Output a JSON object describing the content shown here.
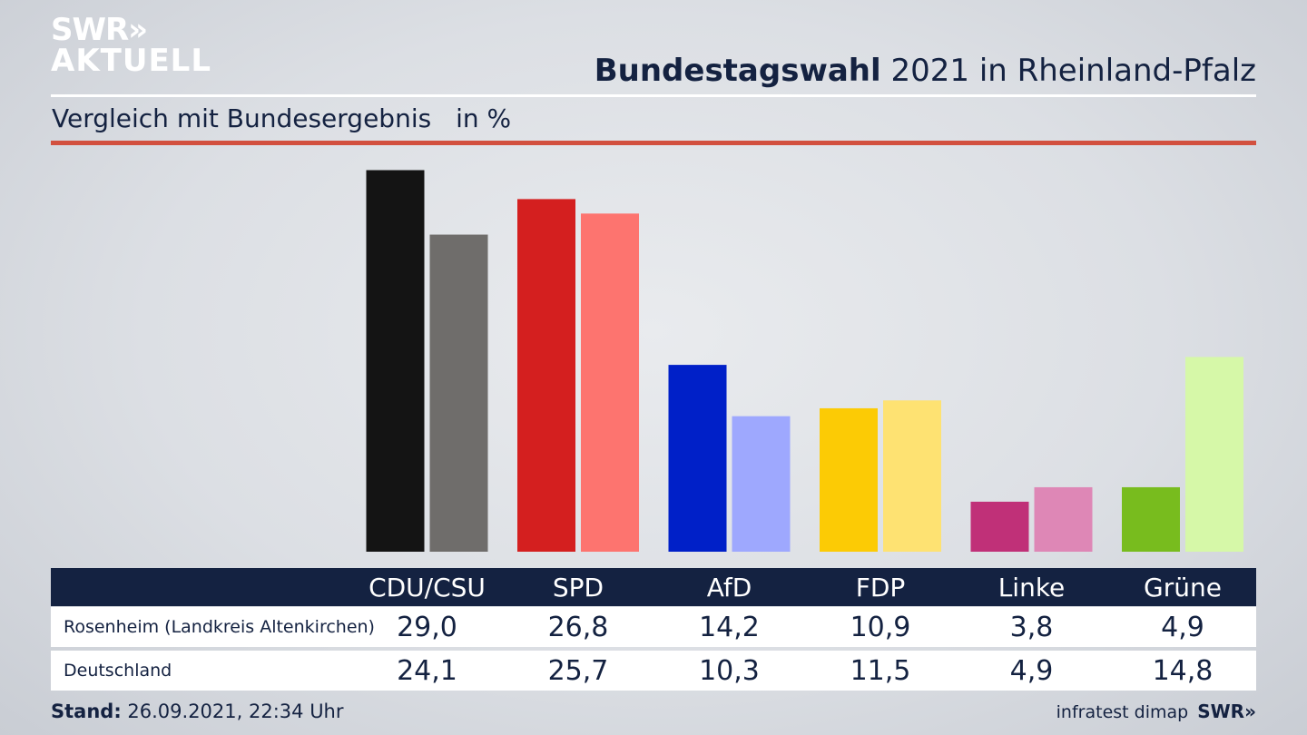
{
  "header": {
    "logo_line1": "SWR»",
    "logo_line2": "AKTUELL",
    "title_bold": "Bundestagswahl",
    "title_rest": "2021 in Rheinland-Pfalz",
    "subtitle": "Vergleich mit Bundesergebnis",
    "unit": "in %"
  },
  "chart_data": {
    "type": "bar",
    "categories": [
      "CDU/CSU",
      "SPD",
      "AfD",
      "FDP",
      "Linke",
      "Grüne"
    ],
    "series": [
      {
        "name": "Rosenheim (Landkreis Altenkirchen)",
        "values": [
          29.0,
          26.8,
          14.2,
          10.9,
          3.8,
          4.9
        ],
        "colors": [
          "#141414",
          "#d41f1f",
          "#0020c8",
          "#fccb05",
          "#c03078",
          "#78bc1e"
        ]
      },
      {
        "name": "Deutschland",
        "values": [
          24.1,
          25.7,
          10.3,
          11.5,
          4.9,
          14.8
        ],
        "colors": [
          "#6f6d6b",
          "#fd746f",
          "#9ea8fe",
          "#fee272",
          "#de87b6",
          "#d6f8a8"
        ]
      }
    ],
    "table_values": [
      [
        "29,0",
        "26,8",
        "14,2",
        "10,9",
        "3,8",
        "4,9"
      ],
      [
        "24,1",
        "25,7",
        "10,3",
        "11,5",
        "4,9",
        "14,8"
      ]
    ]
  },
  "footer": {
    "stand_label": "Stand:",
    "stand_value": "26.09.2021, 22:34 Uhr",
    "source": "infratest dimap",
    "brand": "SWR»"
  }
}
